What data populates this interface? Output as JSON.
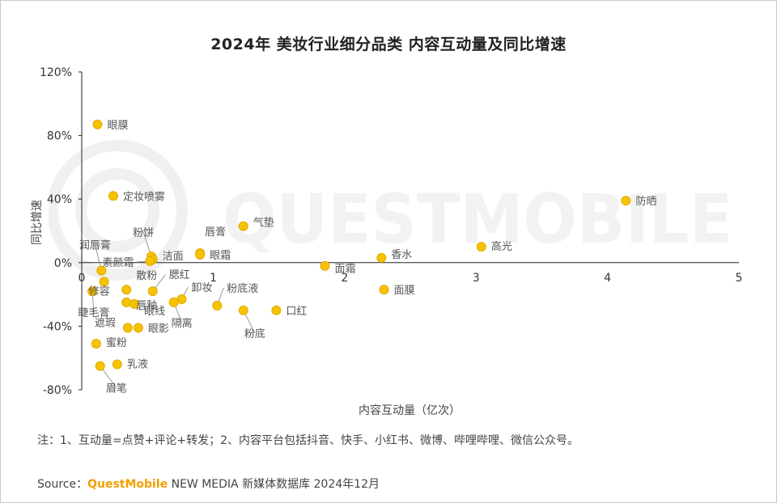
{
  "title": "2024年 美妆行业细分品类 内容互动量及同比增速",
  "footnote": "注：1、互动量=点赞+评论+转发；2、内容平台包括抖音、快手、小红书、微博、哔哩哔哩、微信公众号。",
  "source": {
    "prefix": "Source：",
    "brand": "QuestMobile",
    "rest": " NEW MEDIA 新媒体数据库 2024年12月"
  },
  "watermark": "QUESTMOBILE",
  "colors": {
    "point": "#f5c300",
    "point_stroke": "#e6a800",
    "axis": "#222222",
    "leader": "#999999",
    "brand": "#f0a000"
  },
  "chart_data": {
    "type": "scatter",
    "title": "2024年 美妆行业细分品类 内容互动量及同比增速",
    "xlabel": "内容互动量（亿次）",
    "ylabel": "同比增速",
    "xlim": [
      0,
      5
    ],
    "ylim": [
      -0.8,
      1.2
    ],
    "x_ticks": [
      "0",
      "1",
      "2",
      "3",
      "4",
      "5"
    ],
    "y_ticks": [
      "120%",
      "80%",
      "40%",
      "0%",
      "-40%",
      "-80%"
    ],
    "grid": false,
    "points": [
      {
        "label": "眼膜",
        "x": 0.12,
        "y": 0.87
      },
      {
        "label": "定妆喷雾",
        "x": 0.24,
        "y": 0.42
      },
      {
        "label": "防晒",
        "x": 4.14,
        "y": 0.39
      },
      {
        "label": "气垫",
        "x": 1.23,
        "y": 0.23
      },
      {
        "label": "高光",
        "x": 3.04,
        "y": 0.1
      },
      {
        "label": "唇膏",
        "x": 0.9,
        "y": 0.06
      },
      {
        "label": "眼霜",
        "x": 0.9,
        "y": 0.05
      },
      {
        "label": "粉饼",
        "x": 0.53,
        "y": 0.04
      },
      {
        "label": "香水",
        "x": 2.28,
        "y": 0.03
      },
      {
        "label": "洁面",
        "x": 0.54,
        "y": 0.02
      },
      {
        "label": "素颜霜",
        "x": 0.52,
        "y": 0.01
      },
      {
        "label": "面霜",
        "x": 1.85,
        "y": -0.02
      },
      {
        "label": "润唇膏",
        "x": 0.15,
        "y": -0.05
      },
      {
        "label": "修容",
        "x": 0.17,
        "y": -0.12
      },
      {
        "label": "散粉",
        "x": 0.34,
        "y": -0.17
      },
      {
        "label": "腮红",
        "x": 0.54,
        "y": -0.18
      },
      {
        "label": "面膜",
        "x": 2.3,
        "y": -0.17
      },
      {
        "label": "睫毛膏",
        "x": 0.08,
        "y": -0.18
      },
      {
        "label": "卸妆",
        "x": 0.76,
        "y": -0.23
      },
      {
        "label": "唇釉",
        "x": 0.34,
        "y": -0.25
      },
      {
        "label": "隔离",
        "x": 0.7,
        "y": -0.25
      },
      {
        "label": "眼线",
        "x": 0.4,
        "y": -0.26
      },
      {
        "label": "粉底液",
        "x": 1.03,
        "y": -0.27
      },
      {
        "label": "粉底",
        "x": 1.23,
        "y": -0.3
      },
      {
        "label": "口红",
        "x": 1.48,
        "y": -0.3
      },
      {
        "label": "遮瑕",
        "x": 0.35,
        "y": -0.41
      },
      {
        "label": "眼影",
        "x": 0.43,
        "y": -0.41
      },
      {
        "label": "蜜粉",
        "x": 0.11,
        "y": -0.51
      },
      {
        "label": "乳液",
        "x": 0.27,
        "y": -0.64
      },
      {
        "label": "眉笔",
        "x": 0.14,
        "y": -0.65
      }
    ]
  }
}
